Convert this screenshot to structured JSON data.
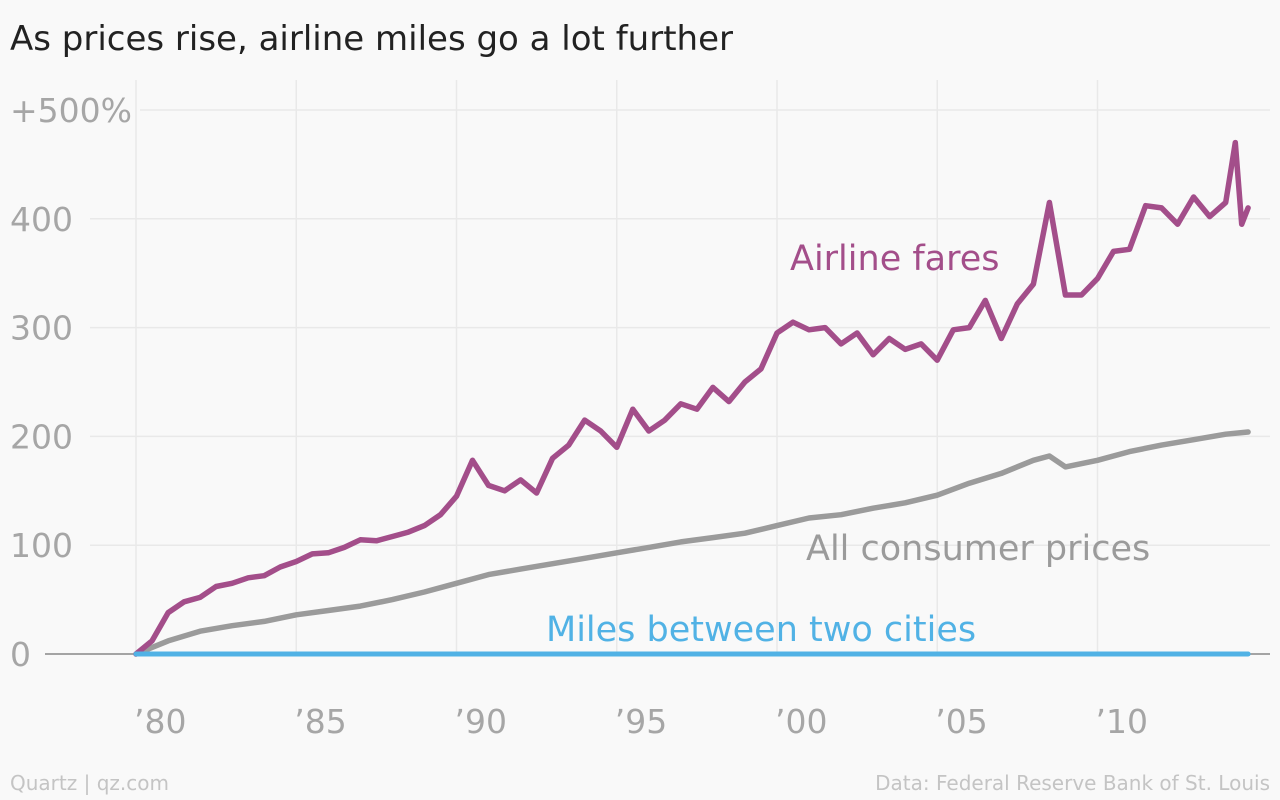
{
  "chart_data": {
    "type": "line",
    "title": "As prices rise, airline miles go a lot further",
    "xlabel": "",
    "ylabel": "",
    "xlim": [
      1977.0,
      2015.5
    ],
    "ylim": [
      -10,
      520
    ],
    "x_ticks": [
      1980,
      1985,
      1990,
      1995,
      2000,
      2005,
      2010
    ],
    "x_tick_labels": [
      "’80",
      "’85",
      "’90",
      "’95",
      "’00",
      "’05",
      "’10"
    ],
    "y_ticks": [
      0,
      100,
      200,
      300,
      400,
      500
    ],
    "y_tick_labels": [
      "0",
      "100",
      "200",
      "300",
      "400",
      "+500%"
    ],
    "grid": true,
    "legend": "none (inline labels)",
    "series": [
      {
        "name": "Airline fares",
        "color": "#a34e8a",
        "x": [
          1980.0,
          1980.5,
          1981.0,
          1981.5,
          1982.0,
          1982.5,
          1983.0,
          1983.5,
          1984.0,
          1984.5,
          1985.0,
          1985.5,
          1986.0,
          1986.5,
          1987.0,
          1987.5,
          1988.0,
          1988.5,
          1989.0,
          1989.5,
          1990.0,
          1990.5,
          1991.0,
          1991.5,
          1992.0,
          1992.5,
          1993.0,
          1993.5,
          1994.0,
          1994.5,
          1995.0,
          1995.5,
          1996.0,
          1996.5,
          1997.0,
          1997.5,
          1998.0,
          1998.5,
          1999.0,
          1999.5,
          2000.0,
          2000.5,
          2001.0,
          2001.5,
          2002.0,
          2002.5,
          2003.0,
          2003.5,
          2004.0,
          2004.5,
          2005.0,
          2005.5,
          2006.0,
          2006.5,
          2007.0,
          2007.5,
          2008.0,
          2008.5,
          2009.0,
          2009.5,
          2010.0,
          2010.5,
          2011.0,
          2011.5,
          2012.0,
          2012.5,
          2013.0,
          2013.5,
          2014.0,
          2014.3,
          2014.5,
          2014.7
        ],
        "values": [
          0,
          12,
          38,
          48,
          52,
          62,
          65,
          70,
          72,
          80,
          85,
          92,
          93,
          98,
          105,
          104,
          108,
          112,
          118,
          128,
          145,
          178,
          155,
          150,
          160,
          148,
          180,
          192,
          215,
          205,
          190,
          225,
          205,
          215,
          230,
          225,
          245,
          232,
          250,
          262,
          295,
          305,
          298,
          300,
          285,
          295,
          275,
          290,
          280,
          285,
          270,
          298,
          300,
          325,
          290,
          322,
          340,
          415,
          330,
          330,
          345,
          370,
          372,
          412,
          410,
          395,
          420,
          402,
          415,
          470,
          395,
          410
        ]
      },
      {
        "name": "All consumer prices",
        "color": "#9b9b9b",
        "x": [
          1980.0,
          1981.0,
          1982.0,
          1983.0,
          1984.0,
          1985.0,
          1986.0,
          1987.0,
          1988.0,
          1989.0,
          1990.0,
          1991.0,
          1992.0,
          1993.0,
          1994.0,
          1995.0,
          1996.0,
          1997.0,
          1998.0,
          1999.0,
          2000.0,
          2001.0,
          2002.0,
          2003.0,
          2004.0,
          2005.0,
          2006.0,
          2007.0,
          2008.0,
          2008.5,
          2009.0,
          2010.0,
          2011.0,
          2012.0,
          2013.0,
          2014.0,
          2014.7
        ],
        "values": [
          0,
          12,
          21,
          26,
          30,
          36,
          40,
          44,
          50,
          57,
          65,
          73,
          78,
          83,
          88,
          93,
          98,
          103,
          107,
          111,
          118,
          125,
          128,
          134,
          139,
          146,
          157,
          166,
          178,
          182,
          172,
          178,
          186,
          192,
          197,
          202,
          204
        ]
      },
      {
        "name": "Miles between two cities",
        "color": "#51b2e5",
        "x": [
          1980.0,
          2014.7
        ],
        "values": [
          0,
          0
        ]
      }
    ],
    "annotations": [
      {
        "text": "Airline fares",
        "color": "#a34e8a"
      },
      {
        "text": "All consumer prices",
        "color": "#9b9b9b"
      },
      {
        "text": "Miles between two cities",
        "color": "#51b2e5"
      }
    ]
  },
  "footer": {
    "source_left": "Quartz | qz.com",
    "source_right": "Data: Federal Reserve Bank of St. Louis"
  }
}
